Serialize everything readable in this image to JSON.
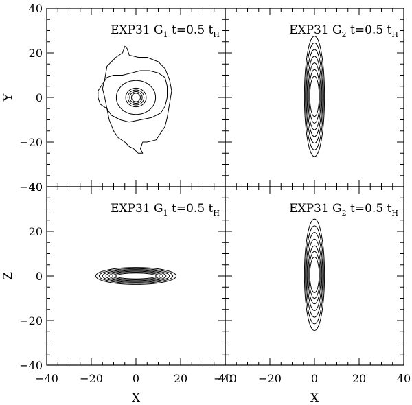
{
  "figure": {
    "x_axis_label": "X",
    "y_axis_labels": [
      "Y",
      "Z"
    ]
  },
  "chart_data": [
    {
      "type": "contour",
      "row": 0,
      "col": 0,
      "title": {
        "prefix": "EXP31  G",
        "sub": "1",
        "mid": "  t=0.5  t",
        "tsub": "H"
      },
      "xlabel": "",
      "ylabel": "Y",
      "xlim": [
        -40,
        40
      ],
      "ylim": [
        -40,
        40
      ],
      "x_ticks": [
        -40,
        -20,
        0,
        20,
        40
      ],
      "y_ticks": [
        -40,
        -20,
        0,
        20,
        40
      ],
      "contours": [
        {
          "level": 1,
          "shape": "irregular",
          "points": [
            [
              -14,
              8
            ],
            [
              -13,
              14
            ],
            [
              -9,
              18
            ],
            [
              -6,
              20
            ],
            [
              -5,
              23
            ],
            [
              -4,
              22
            ],
            [
              -3,
              19
            ],
            [
              1,
              18
            ],
            [
              5,
              18
            ],
            [
              10,
              16
            ],
            [
              13,
              13
            ],
            [
              15,
              8
            ],
            [
              16,
              3
            ],
            [
              15,
              -3
            ],
            [
              14,
              -9
            ],
            [
              13,
              -13
            ],
            [
              11,
              -16
            ],
            [
              9,
              -19
            ],
            [
              5,
              -20
            ],
            [
              3,
              -20
            ],
            [
              2,
              -23
            ],
            [
              3,
              -25
            ],
            [
              1,
              -25
            ],
            [
              -1,
              -23
            ],
            [
              -3,
              -22
            ],
            [
              -5,
              -20
            ],
            [
              -8,
              -18
            ],
            [
              -10,
              -15
            ],
            [
              -12,
              -10
            ],
            [
              -13,
              -5
            ],
            [
              -14,
              0
            ],
            [
              -15,
              4
            ]
          ]
        },
        {
          "level": 2,
          "shape": "irregular",
          "points": [
            [
              -15,
              6
            ],
            [
              -13,
              9
            ],
            [
              -10,
              10
            ],
            [
              -6,
              10
            ],
            [
              -2,
              11
            ],
            [
              2,
              12
            ],
            [
              6,
              12
            ],
            [
              10,
              11
            ],
            [
              13,
              9
            ],
            [
              14,
              5
            ],
            [
              14,
              0
            ],
            [
              13,
              -4
            ],
            [
              11,
              -7
            ],
            [
              7,
              -9
            ],
            [
              2,
              -10
            ],
            [
              -3,
              -11
            ],
            [
              -7,
              -10
            ],
            [
              -11,
              -8
            ],
            [
              -13,
              -5
            ],
            [
              -16,
              -3
            ],
            [
              -17,
              0
            ],
            [
              -17,
              3
            ]
          ]
        },
        {
          "level": 3,
          "shape": "ellipse",
          "cx": 0,
          "cy": 0,
          "rx": 8.8,
          "ry": 7.6
        },
        {
          "level": 4,
          "shape": "ellipse",
          "cx": 0,
          "cy": 0,
          "rx": 4.6,
          "ry": 4.2
        },
        {
          "level": 5,
          "shape": "ellipse",
          "cx": 0,
          "cy": 0,
          "rx": 3.6,
          "ry": 3.4
        },
        {
          "level": 6,
          "shape": "ellipse",
          "cx": 0,
          "cy": 0,
          "rx": 2.8,
          "ry": 2.6
        },
        {
          "level": 7,
          "shape": "ellipse",
          "cx": 0,
          "cy": 0,
          "rx": 2.0,
          "ry": 1.9
        }
      ]
    },
    {
      "type": "contour",
      "row": 0,
      "col": 1,
      "title": {
        "prefix": "EXP31  G",
        "sub": "2",
        "mid": "  t=0.5  t",
        "tsub": "H"
      },
      "xlabel": "",
      "ylabel": "",
      "xlim": [
        -40,
        40
      ],
      "ylim": [
        -40,
        40
      ],
      "x_ticks": [
        -40,
        -20,
        0,
        20,
        40
      ],
      "y_ticks": [
        -40,
        -20,
        0,
        20,
        40
      ],
      "contours": [
        {
          "level": 1,
          "shape": "ellipse",
          "cx": 0,
          "cy": 0.5,
          "rx": 4.5,
          "ry": 27
        },
        {
          "level": 2,
          "shape": "ellipse",
          "cx": 0,
          "cy": 0.5,
          "rx": 4.1,
          "ry": 24
        },
        {
          "level": 3,
          "shape": "ellipse",
          "cx": 0,
          "cy": 0.5,
          "rx": 3.7,
          "ry": 21
        },
        {
          "level": 4,
          "shape": "ellipse",
          "cx": 0,
          "cy": 0.5,
          "rx": 3.3,
          "ry": 18
        },
        {
          "level": 5,
          "shape": "ellipse",
          "cx": 0,
          "cy": 0.5,
          "rx": 2.9,
          "ry": 15
        },
        {
          "level": 6,
          "shape": "ellipse",
          "cx": 0,
          "cy": 0.5,
          "rx": 2.5,
          "ry": 12
        },
        {
          "level": 7,
          "shape": "ellipse",
          "cx": 0,
          "cy": 0.5,
          "rx": 2.1,
          "ry": 9
        }
      ]
    },
    {
      "type": "contour",
      "row": 1,
      "col": 0,
      "title": {
        "prefix": "EXP31  G",
        "sub": "1",
        "mid": "  t=0.5  t",
        "tsub": "H"
      },
      "xlabel": "X",
      "ylabel": "Z",
      "xlim": [
        -40,
        40
      ],
      "ylim": [
        -40,
        40
      ],
      "x_ticks": [
        -40,
        -20,
        0,
        20,
        40
      ],
      "y_ticks": [
        -40,
        -20,
        0,
        20,
        40
      ],
      "contours": [
        {
          "level": 1,
          "shape": "ellipse",
          "cx": 0,
          "cy": 0,
          "rx": 18,
          "ry": 3.8
        },
        {
          "level": 2,
          "shape": "ellipse",
          "cx": 0,
          "cy": 0,
          "rx": 16.5,
          "ry": 3.3
        },
        {
          "level": 3,
          "shape": "ellipse",
          "cx": 0,
          "cy": 0,
          "rx": 15,
          "ry": 2.9
        },
        {
          "level": 4,
          "shape": "ellipse",
          "cx": 0,
          "cy": 0,
          "rx": 13.5,
          "ry": 2.5
        },
        {
          "level": 5,
          "shape": "ellipse",
          "cx": 0,
          "cy": 0,
          "rx": 12,
          "ry": 2.1
        },
        {
          "level": 6,
          "shape": "ellipse",
          "cx": 0,
          "cy": 0,
          "rx": 10.5,
          "ry": 1.7
        },
        {
          "level": 7,
          "shape": "ellipse",
          "cx": 0,
          "cy": 0,
          "rx": 9,
          "ry": 1.3
        }
      ]
    },
    {
      "type": "contour",
      "row": 1,
      "col": 1,
      "title": {
        "prefix": "EXP31  G",
        "sub": "2",
        "mid": "  t=0.5  t",
        "tsub": "H"
      },
      "xlabel": "X",
      "ylabel": "",
      "xlim": [
        -40,
        40
      ],
      "ylim": [
        -40,
        40
      ],
      "x_ticks": [
        -40,
        -20,
        0,
        20,
        40
      ],
      "y_ticks": [
        -40,
        -20,
        0,
        20,
        40
      ],
      "contours": [
        {
          "level": 1,
          "shape": "ellipse",
          "cx": 0,
          "cy": 0.5,
          "rx": 4.5,
          "ry": 25
        },
        {
          "level": 2,
          "shape": "ellipse",
          "cx": 0,
          "cy": 0.5,
          "rx": 4.1,
          "ry": 22
        },
        {
          "level": 3,
          "shape": "ellipse",
          "cx": 0,
          "cy": 0.5,
          "rx": 3.7,
          "ry": 19
        },
        {
          "level": 4,
          "shape": "ellipse",
          "cx": 0,
          "cy": 0.5,
          "rx": 3.3,
          "ry": 16
        },
        {
          "level": 5,
          "shape": "ellipse",
          "cx": 0,
          "cy": 0.5,
          "rx": 2.9,
          "ry": 13
        },
        {
          "level": 6,
          "shape": "ellipse",
          "cx": 0,
          "cy": 0.5,
          "rx": 2.5,
          "ry": 10.5
        },
        {
          "level": 7,
          "shape": "ellipse",
          "cx": 0,
          "cy": 0.5,
          "rx": 2.1,
          "ry": 8
        }
      ]
    }
  ]
}
